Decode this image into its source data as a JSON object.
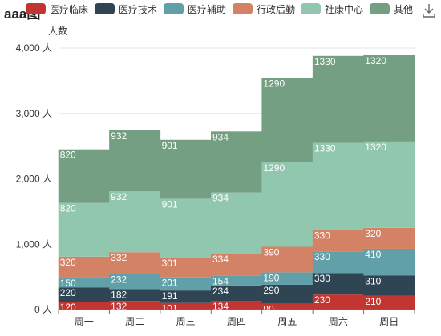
{
  "title": "aaa图",
  "chart_data": {
    "type": "bar",
    "stacked": true,
    "categories": [
      "周一",
      "周二",
      "周三",
      "周四",
      "周五",
      "周六",
      "周日"
    ],
    "ylabel": "人数",
    "ylim": [
      0,
      4000
    ],
    "y_ticks": [
      {
        "value": 0,
        "label": "0 人"
      },
      {
        "value": 1000,
        "label": "1,000 人"
      },
      {
        "value": 2000,
        "label": "2,000 人"
      },
      {
        "value": 3000,
        "label": "3,000 人"
      },
      {
        "value": 4000,
        "label": "4,000 人"
      }
    ],
    "grid": true,
    "legend_position": "top",
    "series": [
      {
        "name": "医疗临床",
        "color": "#c23531",
        "values": [
          120,
          132,
          101,
          134,
          90,
          230,
          210
        ]
      },
      {
        "name": "医疗技术",
        "color": "#2f4554",
        "values": [
          220,
          182,
          191,
          234,
          290,
          330,
          310
        ]
      },
      {
        "name": "医疗辅助",
        "color": "#61a0a8",
        "values": [
          150,
          232,
          201,
          154,
          190,
          330,
          410
        ]
      },
      {
        "name": "行政后勤",
        "color": "#d48265",
        "values": [
          320,
          332,
          301,
          334,
          390,
          330,
          320
        ]
      },
      {
        "name": "社康中心",
        "color": "#91c7ae",
        "values": [
          820,
          932,
          901,
          934,
          1290,
          1330,
          1320
        ]
      },
      {
        "name": "其他",
        "color": "#749f83",
        "values": [
          820,
          932,
          901,
          934,
          1290,
          1330,
          1320
        ]
      }
    ]
  },
  "toolbar": {
    "download_icon": "download-icon"
  }
}
